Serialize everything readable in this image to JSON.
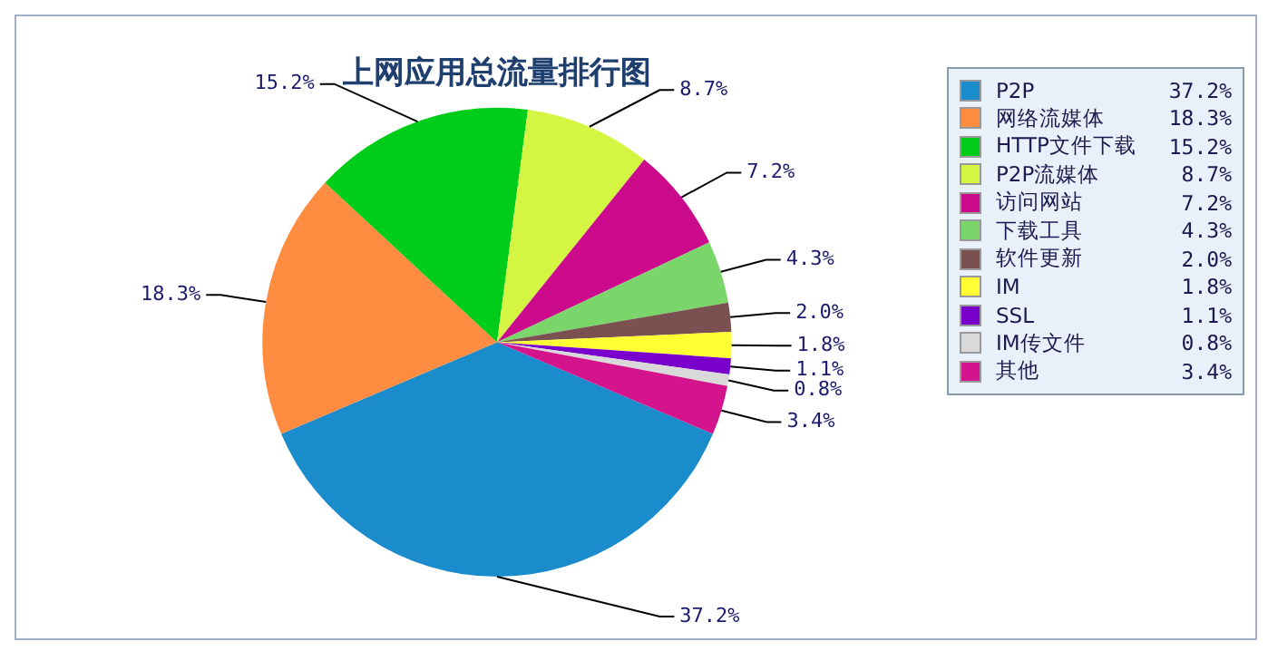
{
  "chart_data": {
    "type": "pie",
    "title": "上网应用总流量排行图",
    "categories": [
      "P2P",
      "网络流媒体",
      "HTTP文件下载",
      "P2P流媒体",
      "访问网站",
      "下载工具",
      "软件更新",
      "IM",
      "SSL",
      "IM传文件",
      "其他"
    ],
    "values": [
      37.2,
      18.3,
      15.2,
      8.7,
      7.2,
      4.3,
      2.0,
      1.8,
      1.1,
      0.8,
      3.4
    ],
    "value_labels": [
      "37.2%",
      "18.3%",
      "15.2%",
      "8.7%",
      "7.2%",
      "4.3%",
      "2.0%",
      "1.8%",
      "1.1%",
      "0.8%",
      "3.4%"
    ],
    "colors": [
      "#1a8ccc",
      "#ff8c40",
      "#00cc1a",
      "#d4f542",
      "#cc0a8c",
      "#7ad66b",
      "#7a5050",
      "#ffff33",
      "#7a00cc",
      "#d9d9d9",
      "#d4148c"
    ],
    "legend": "top right"
  }
}
